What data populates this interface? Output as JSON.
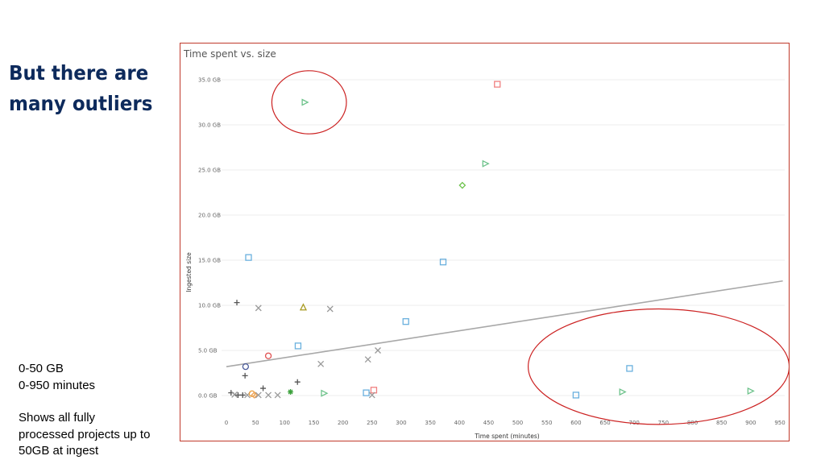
{
  "slide": {
    "title_line1": "But there are",
    "title_line2": "many outliers",
    "notes": {
      "line1": "0-50 GB",
      "line2": "0-950 minutes",
      "line3": "Shows all fully",
      "line4": "processed projects up to",
      "line5": "50GB at ingest"
    }
  },
  "chart_data": {
    "type": "scatter",
    "title": "Time spent vs. size",
    "xlabel": "Time spent (minutes)",
    "ylabel": "Ingested size",
    "xlim": [
      0,
      950
    ],
    "ylim": [
      0,
      35
    ],
    "x_ticks": [
      "0",
      "50",
      "100",
      "150",
      "200",
      "250",
      "300",
      "350",
      "400",
      "450",
      "500",
      "550",
      "600",
      "650",
      "700",
      "750",
      "800",
      "850",
      "900",
      "950"
    ],
    "y_ticks": [
      "0.0 GB",
      "5.0 GB",
      "10.0 GB",
      "15.0 GB",
      "20.0 GB",
      "25.0 GB",
      "30.0 GB",
      "35.0 GB"
    ],
    "grid": true,
    "trend_line": {
      "x": [
        0,
        955
      ],
      "y": [
        3.2,
        12.7
      ],
      "color": "#a8a8a8"
    },
    "highlights": [
      {
        "cx": 142,
        "cy": 32.5,
        "rx": 64,
        "ry": 3.5,
        "color": "#cc2222"
      },
      {
        "cx": 742,
        "cy": 3.2,
        "rx": 224,
        "ry": 6.4,
        "color": "#cc2222"
      }
    ],
    "points": [
      {
        "x": 135,
        "y": 32.5,
        "marker": "triangle-right",
        "color": "#6cc28a"
      },
      {
        "x": 465,
        "y": 34.5,
        "marker": "square",
        "color": "#f08080"
      },
      {
        "x": 445,
        "y": 25.7,
        "marker": "triangle-right",
        "color": "#6cc28a"
      },
      {
        "x": 405,
        "y": 23.3,
        "marker": "diamond",
        "color": "#6cc24a"
      },
      {
        "x": 38,
        "y": 15.3,
        "marker": "square",
        "color": "#6ab0de"
      },
      {
        "x": 372,
        "y": 14.8,
        "marker": "square",
        "color": "#6ab0de"
      },
      {
        "x": 18,
        "y": 10.3,
        "marker": "plus",
        "color": "#555555"
      },
      {
        "x": 55,
        "y": 9.7,
        "marker": "x",
        "color": "#999999"
      },
      {
        "x": 132,
        "y": 9.8,
        "marker": "triangle",
        "color": "#a89a20"
      },
      {
        "x": 178,
        "y": 9.6,
        "marker": "x",
        "color": "#999999"
      },
      {
        "x": 308,
        "y": 8.2,
        "marker": "square",
        "color": "#6ab0de"
      },
      {
        "x": 123,
        "y": 5.5,
        "marker": "square",
        "color": "#6ab0de"
      },
      {
        "x": 72,
        "y": 4.4,
        "marker": "circle",
        "color": "#e05050"
      },
      {
        "x": 33,
        "y": 3.2,
        "marker": "circle",
        "color": "#4a5a9a"
      },
      {
        "x": 32,
        "y": 2.2,
        "marker": "plus",
        "color": "#555555"
      },
      {
        "x": 162,
        "y": 3.5,
        "marker": "x",
        "color": "#999999"
      },
      {
        "x": 243,
        "y": 4.0,
        "marker": "x",
        "color": "#999999"
      },
      {
        "x": 260,
        "y": 5.0,
        "marker": "x",
        "color": "#999999"
      },
      {
        "x": 122,
        "y": 1.5,
        "marker": "plus",
        "color": "#555555"
      },
      {
        "x": 63,
        "y": 0.8,
        "marker": "plus",
        "color": "#555555"
      },
      {
        "x": 110,
        "y": 0.4,
        "marker": "asterisk",
        "color": "#3aa03a"
      },
      {
        "x": 168,
        "y": 0.25,
        "marker": "triangle-right",
        "color": "#6cc28a"
      },
      {
        "x": 240,
        "y": 0.3,
        "marker": "square",
        "color": "#6ab0de"
      },
      {
        "x": 253,
        "y": 0.6,
        "marker": "square",
        "color": "#f08080"
      },
      {
        "x": 250,
        "y": 0.05,
        "marker": "x",
        "color": "#999999"
      },
      {
        "x": 8,
        "y": 0.3,
        "marker": "plus",
        "color": "#555555"
      },
      {
        "x": 14,
        "y": 0.1,
        "marker": "x",
        "color": "#999999"
      },
      {
        "x": 20,
        "y": 0.05,
        "marker": "plus",
        "color": "#555555"
      },
      {
        "x": 28,
        "y": 0.05,
        "marker": "plus",
        "color": "#555555"
      },
      {
        "x": 36,
        "y": 0.05,
        "marker": "x",
        "color": "#999999"
      },
      {
        "x": 44,
        "y": 0.2,
        "marker": "circle",
        "color": "#e8a040"
      },
      {
        "x": 48,
        "y": 0.05,
        "marker": "diamond",
        "color": "#f0a050"
      },
      {
        "x": 55,
        "y": 0.05,
        "marker": "x",
        "color": "#999999"
      },
      {
        "x": 72,
        "y": 0.05,
        "marker": "x",
        "color": "#999999"
      },
      {
        "x": 88,
        "y": 0.05,
        "marker": "x",
        "color": "#999999"
      },
      {
        "x": 600,
        "y": 0.05,
        "marker": "square",
        "color": "#6ab0de"
      },
      {
        "x": 692,
        "y": 3.0,
        "marker": "square",
        "color": "#6ab0de"
      },
      {
        "x": 680,
        "y": 0.4,
        "marker": "triangle-right",
        "color": "#6cc28a"
      },
      {
        "x": 900,
        "y": 0.5,
        "marker": "triangle-right",
        "color": "#6cc28a"
      }
    ]
  }
}
